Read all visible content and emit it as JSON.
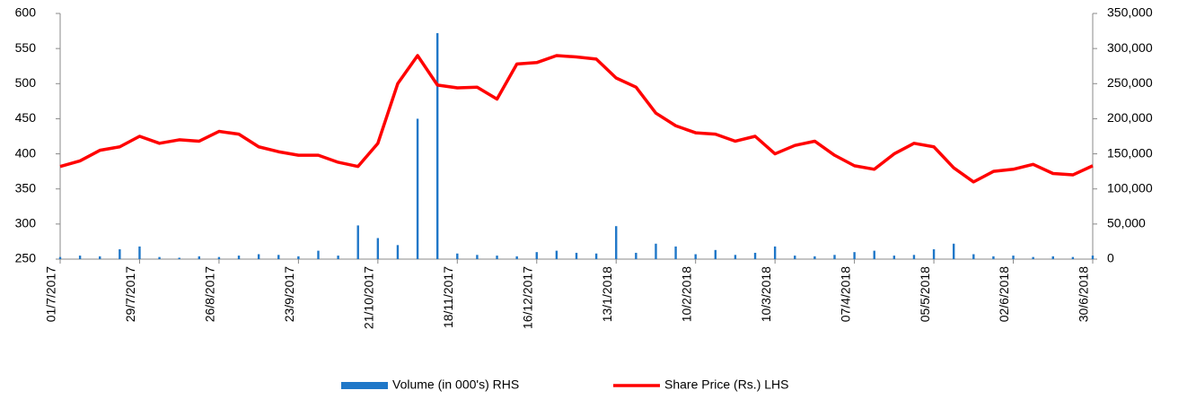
{
  "chart_data": {
    "type": "bar-line",
    "x": [
      "01/7/2017",
      "08/7/2017",
      "15/7/2017",
      "22/7/2017",
      "29/7/2017",
      "05/8/2017",
      "12/8/2017",
      "19/8/2017",
      "26/8/2017",
      "02/9/2017",
      "09/9/2017",
      "16/9/2017",
      "23/9/2017",
      "30/9/2017",
      "07/10/2017",
      "14/10/2017",
      "21/10/2017",
      "28/10/2017",
      "04/11/2017",
      "11/11/2017",
      "18/11/2017",
      "25/11/2017",
      "02/12/2017",
      "09/12/2017",
      "16/12/2017",
      "23/12/2017",
      "30/12/2017",
      "06/1/2018",
      "13/1/2018",
      "20/1/2018",
      "27/1/2018",
      "03/2/2018",
      "10/2/2018",
      "17/2/2018",
      "24/2/2018",
      "03/3/2018",
      "10/3/2018",
      "17/3/2018",
      "24/3/2018",
      "31/3/2018",
      "07/4/2018",
      "14/4/2018",
      "21/4/2018",
      "28/4/2018",
      "05/5/2018",
      "12/5/2018",
      "19/5/2018",
      "26/5/2018",
      "02/6/2018",
      "09/6/2018",
      "16/6/2018",
      "23/6/2018",
      "30/6/2018"
    ],
    "series": [
      {
        "name": "Volume (in 000's) RHS",
        "color": "#1f77c8",
        "axis": "y2",
        "values": [
          3000,
          5000,
          4000,
          14000,
          18000,
          3000,
          2000,
          4000,
          3000,
          5000,
          7000,
          6000,
          4000,
          12000,
          5000,
          48000,
          30000,
          20000,
          200000,
          322000,
          8000,
          6000,
          5000,
          4000,
          10000,
          12000,
          9000,
          8000,
          47000,
          9000,
          22000,
          18000,
          7000,
          13000,
          6000,
          9000,
          18000,
          5000,
          4000,
          6000,
          10000,
          12000,
          5000,
          6000,
          14000,
          22000,
          7000,
          4000,
          5000,
          3000,
          4000,
          3000,
          5000
        ]
      },
      {
        "name": "Share Price (Rs.) LHS",
        "color": "#ff0000",
        "values": [
          382,
          390,
          405,
          410,
          425,
          415,
          420,
          418,
          432,
          428,
          410,
          403,
          398,
          398,
          388,
          382,
          415,
          500,
          540,
          498,
          494,
          495,
          478,
          528,
          530,
          540,
          538,
          535,
          508,
          495,
          458,
          440,
          430,
          428,
          418,
          425,
          400,
          412,
          418,
          398,
          383,
          378,
          400,
          415,
          410,
          380,
          360,
          375,
          378,
          385,
          372,
          370,
          383
        ]
      }
    ],
    "xlim": [
      "01/7/2017",
      "30/6/2018"
    ],
    "xticks": [
      "01/7/2017",
      "29/7/2017",
      "26/8/2017",
      "23/9/2017",
      "21/10/2017",
      "18/11/2017",
      "16/12/2017",
      "13/1/2018",
      "10/2/2018",
      "10/3/2018",
      "07/4/2018",
      "05/5/2018",
      "02/6/2018",
      "30/6/2018"
    ],
    "ylim": [
      250,
      600
    ],
    "yticks": [
      250,
      300,
      350,
      400,
      450,
      500,
      550,
      600
    ],
    "y2lim": [
      0,
      350000
    ],
    "y2ticks": [
      0,
      {
        "value": 50000,
        "label": "50,000"
      },
      {
        "value": 100000,
        "label": "100,000"
      },
      {
        "value": 150000,
        "label": "150,000"
      },
      {
        "value": 200000,
        "label": "200,000"
      },
      {
        "value": 250000,
        "label": "250,000"
      },
      {
        "value": 300000,
        "label": "300,000"
      },
      {
        "value": 350000,
        "label": "350,000"
      }
    ],
    "grid": false,
    "legend": "bottom"
  }
}
